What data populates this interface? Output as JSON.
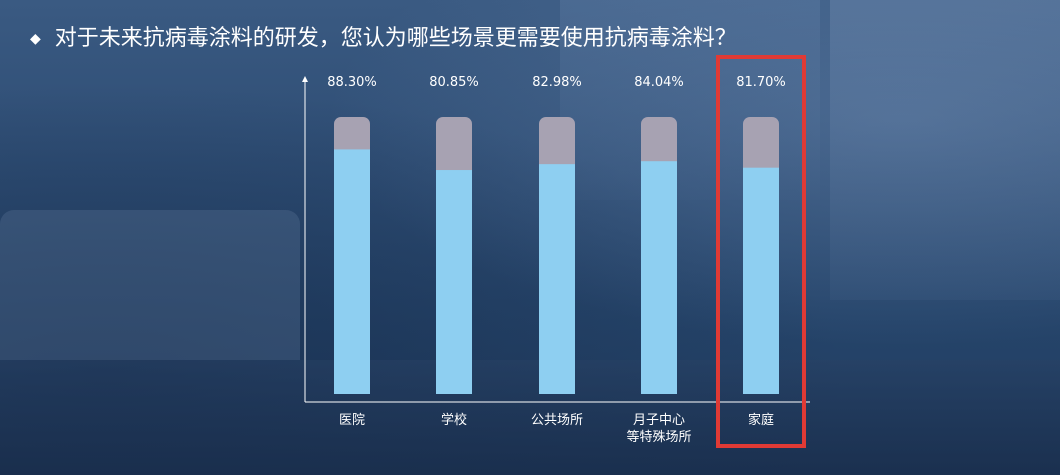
{
  "title": {
    "bullet": "◆",
    "text": "对于未来抗病毒涂料的研发，您认为哪些场景更需要使用抗病毒涂料？"
  },
  "colors": {
    "bar_fill": "#8ecff1",
    "bar_track": "#a7a2b2",
    "highlight_border": "#e03a35",
    "axis": "#ffffff"
  },
  "chart_data": {
    "type": "bar",
    "categories": [
      [
        "医院"
      ],
      [
        "学校"
      ],
      [
        "公共场所"
      ],
      [
        "月子中心",
        "等特殊场所"
      ],
      [
        "家庭"
      ]
    ],
    "values": [
      88.3,
      80.85,
      82.98,
      84.04,
      81.7
    ],
    "value_labels": [
      "88.30%",
      "80.85%",
      "82.98%",
      "84.04%",
      "81.70%"
    ],
    "ylim": [
      0,
      100
    ],
    "unit": "%",
    "highlighted_category_index": 4,
    "grid": false,
    "legend": "none"
  }
}
